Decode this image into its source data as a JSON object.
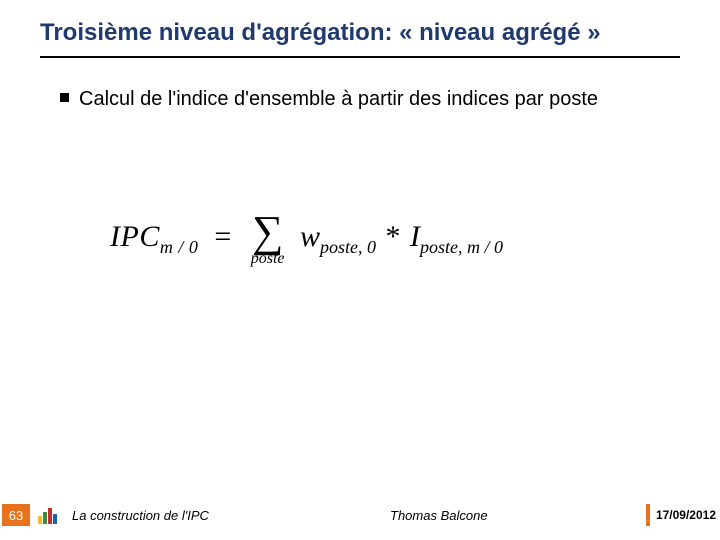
{
  "title": "Troisième niveau d'agrégation: « niveau agrégé »",
  "bullet": "Calcul de l'indice d'ensemble à partir des indices par poste",
  "formula": {
    "lhs_main": "IPC",
    "lhs_sub": "m / 0",
    "sum_sub": "poste",
    "w": "w",
    "w_sub": "poste, 0",
    "I": "I",
    "I_sub": "poste, m / 0"
  },
  "footer": {
    "page": "63",
    "doc_title": "La construction de l'IPC",
    "author": "Thomas Balcone",
    "date": "17/09/2012"
  }
}
